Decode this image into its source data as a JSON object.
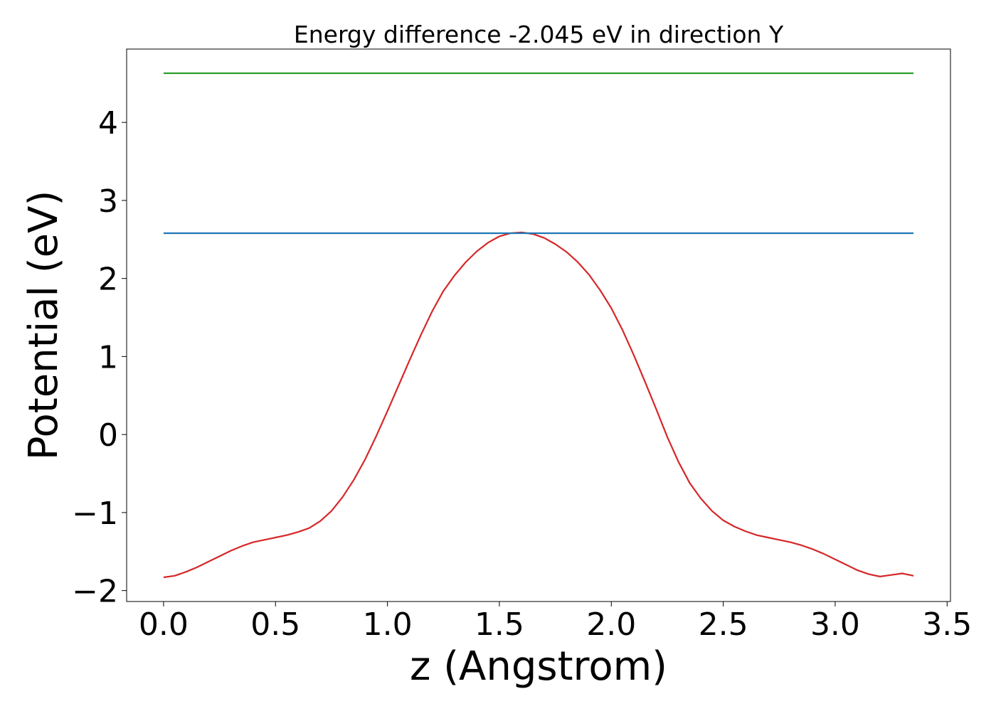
{
  "chart_data": {
    "type": "line",
    "title": "Energy difference -2.045 eV in direction Y",
    "xlabel": "z (Angstrom)",
    "ylabel": "Potential (eV)",
    "xlim": [
      -0.165,
      3.515
    ],
    "ylim": [
      -2.14,
      4.94
    ],
    "xticks": [
      {
        "value": 0.0,
        "label": "0.0"
      },
      {
        "value": 0.5,
        "label": "0.5"
      },
      {
        "value": 1.0,
        "label": "1.0"
      },
      {
        "value": 1.5,
        "label": "1.5"
      },
      {
        "value": 2.0,
        "label": "2.0"
      },
      {
        "value": 2.5,
        "label": "2.5"
      },
      {
        "value": 3.0,
        "label": "3.0"
      },
      {
        "value": 3.5,
        "label": "3.5"
      }
    ],
    "yticks": [
      {
        "value": -2,
        "label": "−2"
      },
      {
        "value": -1,
        "label": "−1"
      },
      {
        "value": 0,
        "label": "0"
      },
      {
        "value": 1,
        "label": "1"
      },
      {
        "value": 2,
        "label": "2"
      },
      {
        "value": 3,
        "label": "3"
      },
      {
        "value": 4,
        "label": "4"
      }
    ],
    "grid": false,
    "legend": "none",
    "series": [
      {
        "color": "#d62728",
        "x": [
          0.0,
          0.05,
          0.1,
          0.15,
          0.2,
          0.25,
          0.3,
          0.35,
          0.4,
          0.45,
          0.5,
          0.55,
          0.6,
          0.65,
          0.7,
          0.75,
          0.8,
          0.85,
          0.9,
          0.95,
          1.0,
          1.05,
          1.1,
          1.15,
          1.2,
          1.25,
          1.3,
          1.35,
          1.4,
          1.45,
          1.5,
          1.55,
          1.6,
          1.65,
          1.7,
          1.75,
          1.8,
          1.85,
          1.9,
          1.95,
          2.0,
          2.05,
          2.1,
          2.15,
          2.2,
          2.25,
          2.3,
          2.35,
          2.4,
          2.45,
          2.5,
          2.55,
          2.6,
          2.65,
          2.7,
          2.75,
          2.8,
          2.85,
          2.9,
          2.95,
          3.0,
          3.05,
          3.1,
          3.15,
          3.2,
          3.25,
          3.3,
          3.35
        ],
        "y": [
          -1.83,
          -1.81,
          -1.76,
          -1.7,
          -1.63,
          -1.56,
          -1.49,
          -1.43,
          -1.38,
          -1.35,
          -1.32,
          -1.29,
          -1.25,
          -1.2,
          -1.11,
          -0.98,
          -0.8,
          -0.58,
          -0.32,
          -0.02,
          0.3,
          0.63,
          0.96,
          1.28,
          1.58,
          1.84,
          2.04,
          2.21,
          2.35,
          2.46,
          2.54,
          2.58,
          2.59,
          2.57,
          2.52,
          2.44,
          2.34,
          2.21,
          2.05,
          1.85,
          1.62,
          1.34,
          1.02,
          0.68,
          0.33,
          -0.03,
          -0.35,
          -0.62,
          -0.82,
          -0.98,
          -1.1,
          -1.18,
          -1.24,
          -1.29,
          -1.32,
          -1.35,
          -1.38,
          -1.42,
          -1.47,
          -1.53,
          -1.6,
          -1.67,
          -1.74,
          -1.79,
          -1.82,
          -1.8,
          -1.78,
          -1.81
        ]
      },
      {
        "color": "#1f77b4",
        "x": [
          0.0,
          3.35
        ],
        "y": [
          2.58,
          2.58
        ]
      },
      {
        "color": "#2ca02c",
        "x": [
          0.0,
          3.35
        ],
        "y": [
          4.63,
          4.63
        ]
      }
    ]
  }
}
